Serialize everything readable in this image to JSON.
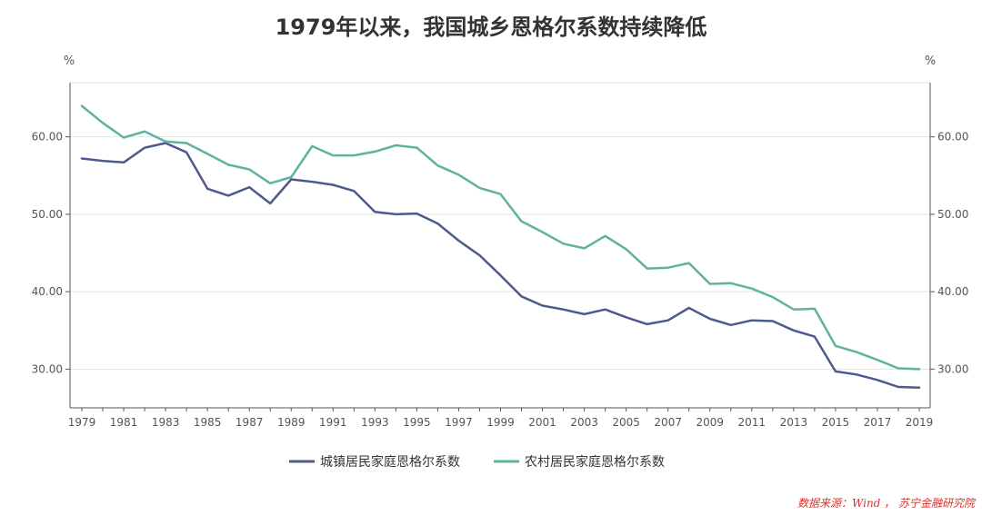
{
  "chart_data": {
    "type": "line",
    "title": "1979年以来，我国城乡恩格尔系数持续降低",
    "y_unit_left": "%",
    "y_unit_right": "%",
    "ylim": [
      25,
      67
    ],
    "yticks": [
      30,
      40,
      50,
      60
    ],
    "ytick_labels": [
      "30.00",
      "40.00",
      "50.00",
      "60.00"
    ],
    "x": [
      1979,
      1980,
      1981,
      1982,
      1983,
      1984,
      1985,
      1986,
      1987,
      1988,
      1989,
      1990,
      1991,
      1992,
      1993,
      1994,
      1995,
      1996,
      1997,
      1998,
      1999,
      2000,
      2001,
      2002,
      2003,
      2004,
      2005,
      2006,
      2007,
      2008,
      2009,
      2010,
      2011,
      2012,
      2013,
      2014,
      2015,
      2016,
      2017,
      2018,
      2019
    ],
    "xtick_labels": [
      "1979",
      "1981",
      "1983",
      "1985",
      "1987",
      "1989",
      "1991",
      "1993",
      "1995",
      "1997",
      "1999",
      "2001",
      "2003",
      "2005",
      "2007",
      "2009",
      "2011",
      "2013",
      "2015",
      "2017",
      "2019"
    ],
    "grid": true,
    "legend_position": "bottom",
    "series": [
      {
        "name": "城镇居民家庭恩格尔系数",
        "color": "#4e5a8e",
        "values": [
          57.2,
          56.9,
          56.7,
          58.6,
          59.2,
          58.0,
          53.3,
          52.4,
          53.5,
          51.4,
          54.5,
          54.2,
          53.8,
          53.0,
          50.3,
          50.0,
          50.1,
          48.8,
          46.6,
          44.7,
          42.1,
          39.4,
          38.2,
          37.7,
          37.1,
          37.7,
          36.7,
          35.8,
          36.3,
          37.9,
          36.5,
          35.7,
          36.3,
          36.2,
          35.0,
          34.2,
          29.7,
          29.3,
          28.6,
          27.7,
          27.6
        ]
      },
      {
        "name": "农村居民家庭恩格尔系数",
        "color": "#5fb39d",
        "values": [
          64.0,
          61.8,
          59.9,
          60.7,
          59.4,
          59.2,
          57.8,
          56.4,
          55.8,
          54.0,
          54.8,
          58.8,
          57.6,
          57.6,
          58.1,
          58.9,
          58.6,
          56.3,
          55.1,
          53.4,
          52.6,
          49.1,
          47.7,
          46.2,
          45.6,
          47.2,
          45.5,
          43.0,
          43.1,
          43.7,
          41.0,
          41.1,
          40.4,
          39.3,
          37.7,
          37.8,
          33.0,
          32.2,
          31.2,
          30.1,
          30.0
        ]
      }
    ]
  },
  "source_note": "数据来源：Wind ， 苏宁金融研究院"
}
